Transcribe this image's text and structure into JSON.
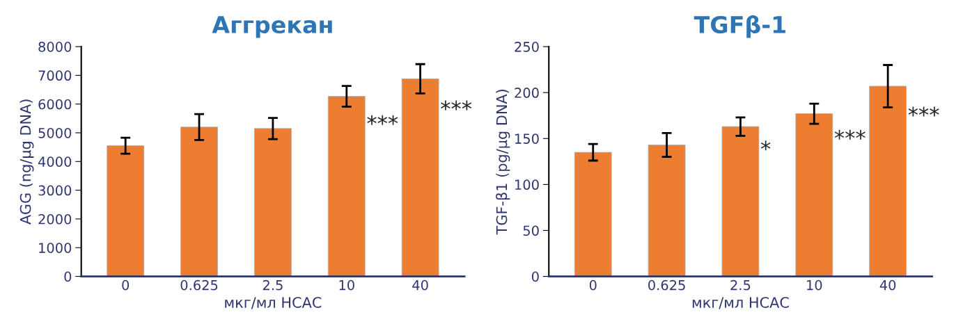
{
  "chart_data": [
    {
      "type": "bar",
      "title": "Аггрекан",
      "xlabel": "мкг/мл НСАС",
      "ylabel": "AGG (ng/µg DNA)",
      "categories": [
        "0",
        "0.625",
        "2.5",
        "10",
        "40"
      ],
      "series": [
        {
          "color": "#ed7d31",
          "values": [
            4550,
            5200,
            5150,
            6270,
            6880
          ],
          "errors": [
            280,
            450,
            370,
            360,
            510
          ]
        }
      ],
      "ylim": [
        0,
        8000
      ],
      "yticks": [
        0,
        1000,
        2000,
        3000,
        4000,
        5000,
        6000,
        7000,
        8000
      ],
      "grid": false,
      "annotations": [
        "***",
        "***"
      ]
    },
    {
      "type": "bar",
      "title": "TGFβ-1",
      "xlabel": "мкг/мл НСАС",
      "ylabel": "TGF-β1 (pg/µg DNA)",
      "categories": [
        "0",
        "0.625",
        "2.5",
        "10",
        "40"
      ],
      "series": [
        {
          "color": "#ed7d31",
          "values": [
            135,
            143,
            163,
            177,
            207
          ],
          "errors": [
            9,
            13,
            10,
            11,
            23
          ]
        }
      ],
      "ylim": [
        0,
        250
      ],
      "yticks": [
        0,
        50,
        100,
        150,
        200,
        250
      ],
      "grid": false,
      "annotations": [
        "*",
        "***",
        "***"
      ]
    }
  ]
}
